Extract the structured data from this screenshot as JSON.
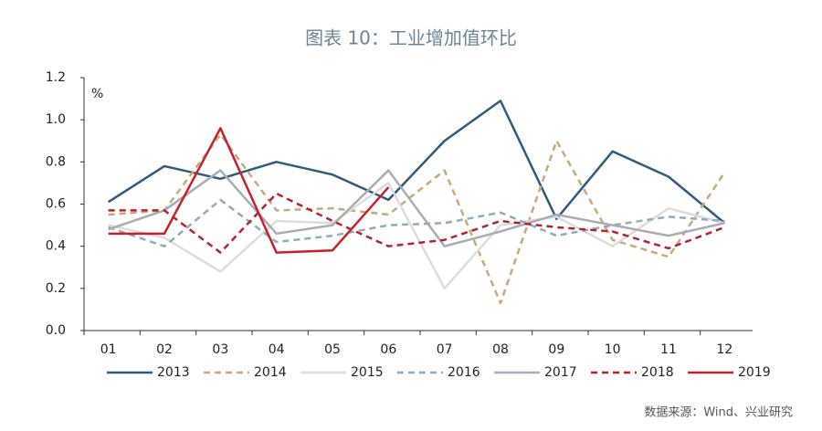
{
  "chart_data": {
    "type": "line",
    "title": "图表 10：工业增加值环比",
    "y_unit": "%",
    "source": "数据来源：Wind、兴业研究",
    "categories": [
      "01",
      "02",
      "03",
      "04",
      "05",
      "06",
      "07",
      "08",
      "09",
      "10",
      "11",
      "12"
    ],
    "ylim": [
      0,
      1.2
    ],
    "yticks": [
      {
        "value": 0,
        "label": "0.0"
      },
      {
        "value": 0.2,
        "label": "0.2"
      },
      {
        "value": 0.4,
        "label": "0.4"
      },
      {
        "value": 0.6,
        "label": "0.6"
      },
      {
        "value": 0.8,
        "label": "0.8"
      },
      {
        "value": 1.0,
        "label": "1.0"
      },
      {
        "value": 1.2,
        "label": "1.2"
      }
    ],
    "legend": "bottom",
    "series": [
      {
        "name": "2013",
        "color": "#2e5b7f",
        "dashed": false,
        "values": [
          0.61,
          0.78,
          0.72,
          0.8,
          0.74,
          0.62,
          0.9,
          1.09,
          0.53,
          0.85,
          0.73,
          0.51
        ]
      },
      {
        "name": "2014",
        "color": "#c8a97a",
        "dashed": true,
        "values": [
          0.55,
          0.57,
          0.93,
          0.57,
          0.58,
          0.55,
          0.76,
          0.13,
          0.9,
          0.43,
          0.35,
          0.75
        ]
      },
      {
        "name": "2015",
        "color": "#dcdcdc",
        "dashed": false,
        "values": [
          0.5,
          0.44,
          0.28,
          0.52,
          0.51,
          0.7,
          0.2,
          0.5,
          0.54,
          0.4,
          0.58,
          0.51
        ]
      },
      {
        "name": "2016",
        "color": "#8fadbd",
        "dashed": true,
        "values": [
          0.49,
          0.4,
          0.62,
          0.42,
          0.45,
          0.5,
          0.51,
          0.56,
          0.45,
          0.5,
          0.54,
          0.52
        ]
      },
      {
        "name": "2017",
        "color": "#a9adb3",
        "dashed": false,
        "values": [
          0.48,
          0.57,
          0.76,
          0.46,
          0.5,
          0.76,
          0.4,
          0.47,
          0.55,
          0.5,
          0.45,
          0.51
        ]
      },
      {
        "name": "2018",
        "color": "#b3242e",
        "dashed": true,
        "values": [
          0.57,
          0.57,
          0.37,
          0.65,
          0.52,
          0.4,
          0.43,
          0.52,
          0.49,
          0.47,
          0.39,
          0.49
        ]
      },
      {
        "name": "2019",
        "color": "#c8202a",
        "dashed": false,
        "values": [
          0.46,
          0.46,
          0.96,
          0.37,
          0.38,
          0.68,
          null,
          null,
          null,
          null,
          null,
          null
        ]
      }
    ]
  }
}
